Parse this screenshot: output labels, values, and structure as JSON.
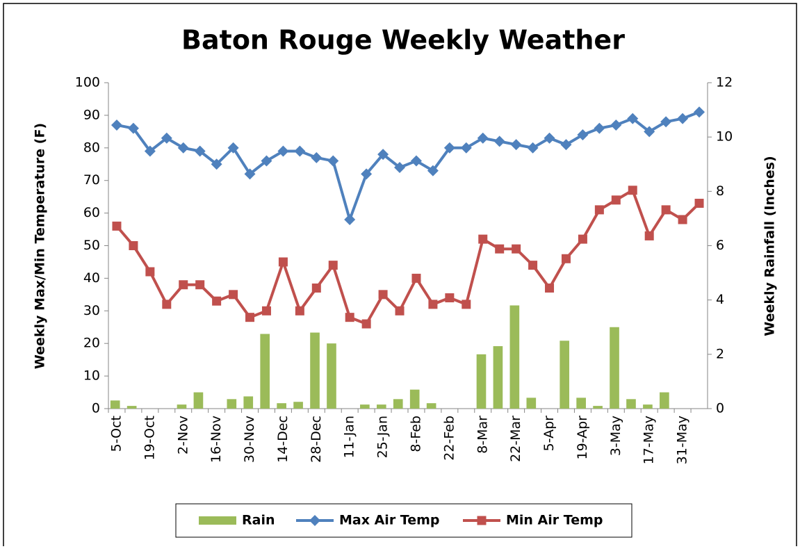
{
  "chart_data": {
    "type": "combo",
    "title": "Baton Rouge Weekly Weather",
    "y_label": "Weekly Max/Min Temperature (F)",
    "y2_label": "Weekly Rainfall (Inches)",
    "categories": [
      "5-Oct",
      null,
      "19-Oct",
      null,
      "2-Nov",
      null,
      "16-Nov",
      null,
      "30-Nov",
      null,
      "14-Dec",
      null,
      "28-Dec",
      null,
      "11-Jan",
      null,
      "25-Jan",
      null,
      "8-Feb",
      null,
      "22-Feb",
      null,
      "8-Mar",
      null,
      "22-Mar",
      null,
      "5-Apr",
      null,
      "19-Apr",
      null,
      "3-May",
      null,
      "17-May",
      null,
      "31-May",
      null
    ],
    "series": [
      {
        "name": "Rain",
        "type": "bar",
        "axis": "y2",
        "color": "#9bbb59",
        "values": [
          0.3,
          0.1,
          0,
          0,
          0.15,
          0.6,
          0,
          0.35,
          0.45,
          2.75,
          0.2,
          0.25,
          2.8,
          2.4,
          0,
          0.15,
          0.15,
          0.35,
          0.7,
          0.2,
          0,
          0,
          2.0,
          2.3,
          3.8,
          0.4,
          0,
          2.5,
          0.4,
          0.1,
          3.0,
          0.35,
          0.15,
          0.6,
          0,
          0
        ]
      },
      {
        "name": "Max Air Temp",
        "type": "line",
        "marker": "diamond",
        "color": "#4f81bd",
        "values": [
          87,
          86,
          79,
          83,
          80,
          79,
          75,
          80,
          72,
          76,
          79,
          79,
          77,
          76,
          58,
          72,
          78,
          74,
          76,
          73,
          80,
          80,
          83,
          82,
          81,
          80,
          83,
          81,
          84,
          86,
          87,
          89,
          85,
          88,
          89,
          91
        ]
      },
      {
        "name": "Min Air Temp",
        "type": "line",
        "marker": "square",
        "color": "#c0504d",
        "values": [
          56,
          50,
          42,
          32,
          38,
          38,
          33,
          35,
          28,
          30,
          45,
          30,
          37,
          44,
          28,
          26,
          35,
          30,
          40,
          32,
          34,
          32,
          52,
          49,
          49,
          44,
          37,
          46,
          52,
          61,
          64,
          67,
          53,
          61,
          58,
          63
        ]
      }
    ],
    "ylim": [
      0,
      100
    ],
    "yticks": [
      0,
      10,
      20,
      30,
      40,
      50,
      60,
      70,
      80,
      90,
      100
    ],
    "y2lim": [
      0,
      12
    ],
    "y2ticks": [
      0,
      2,
      4,
      6,
      8,
      10,
      12
    ],
    "grid": false,
    "legend": "bottom"
  }
}
